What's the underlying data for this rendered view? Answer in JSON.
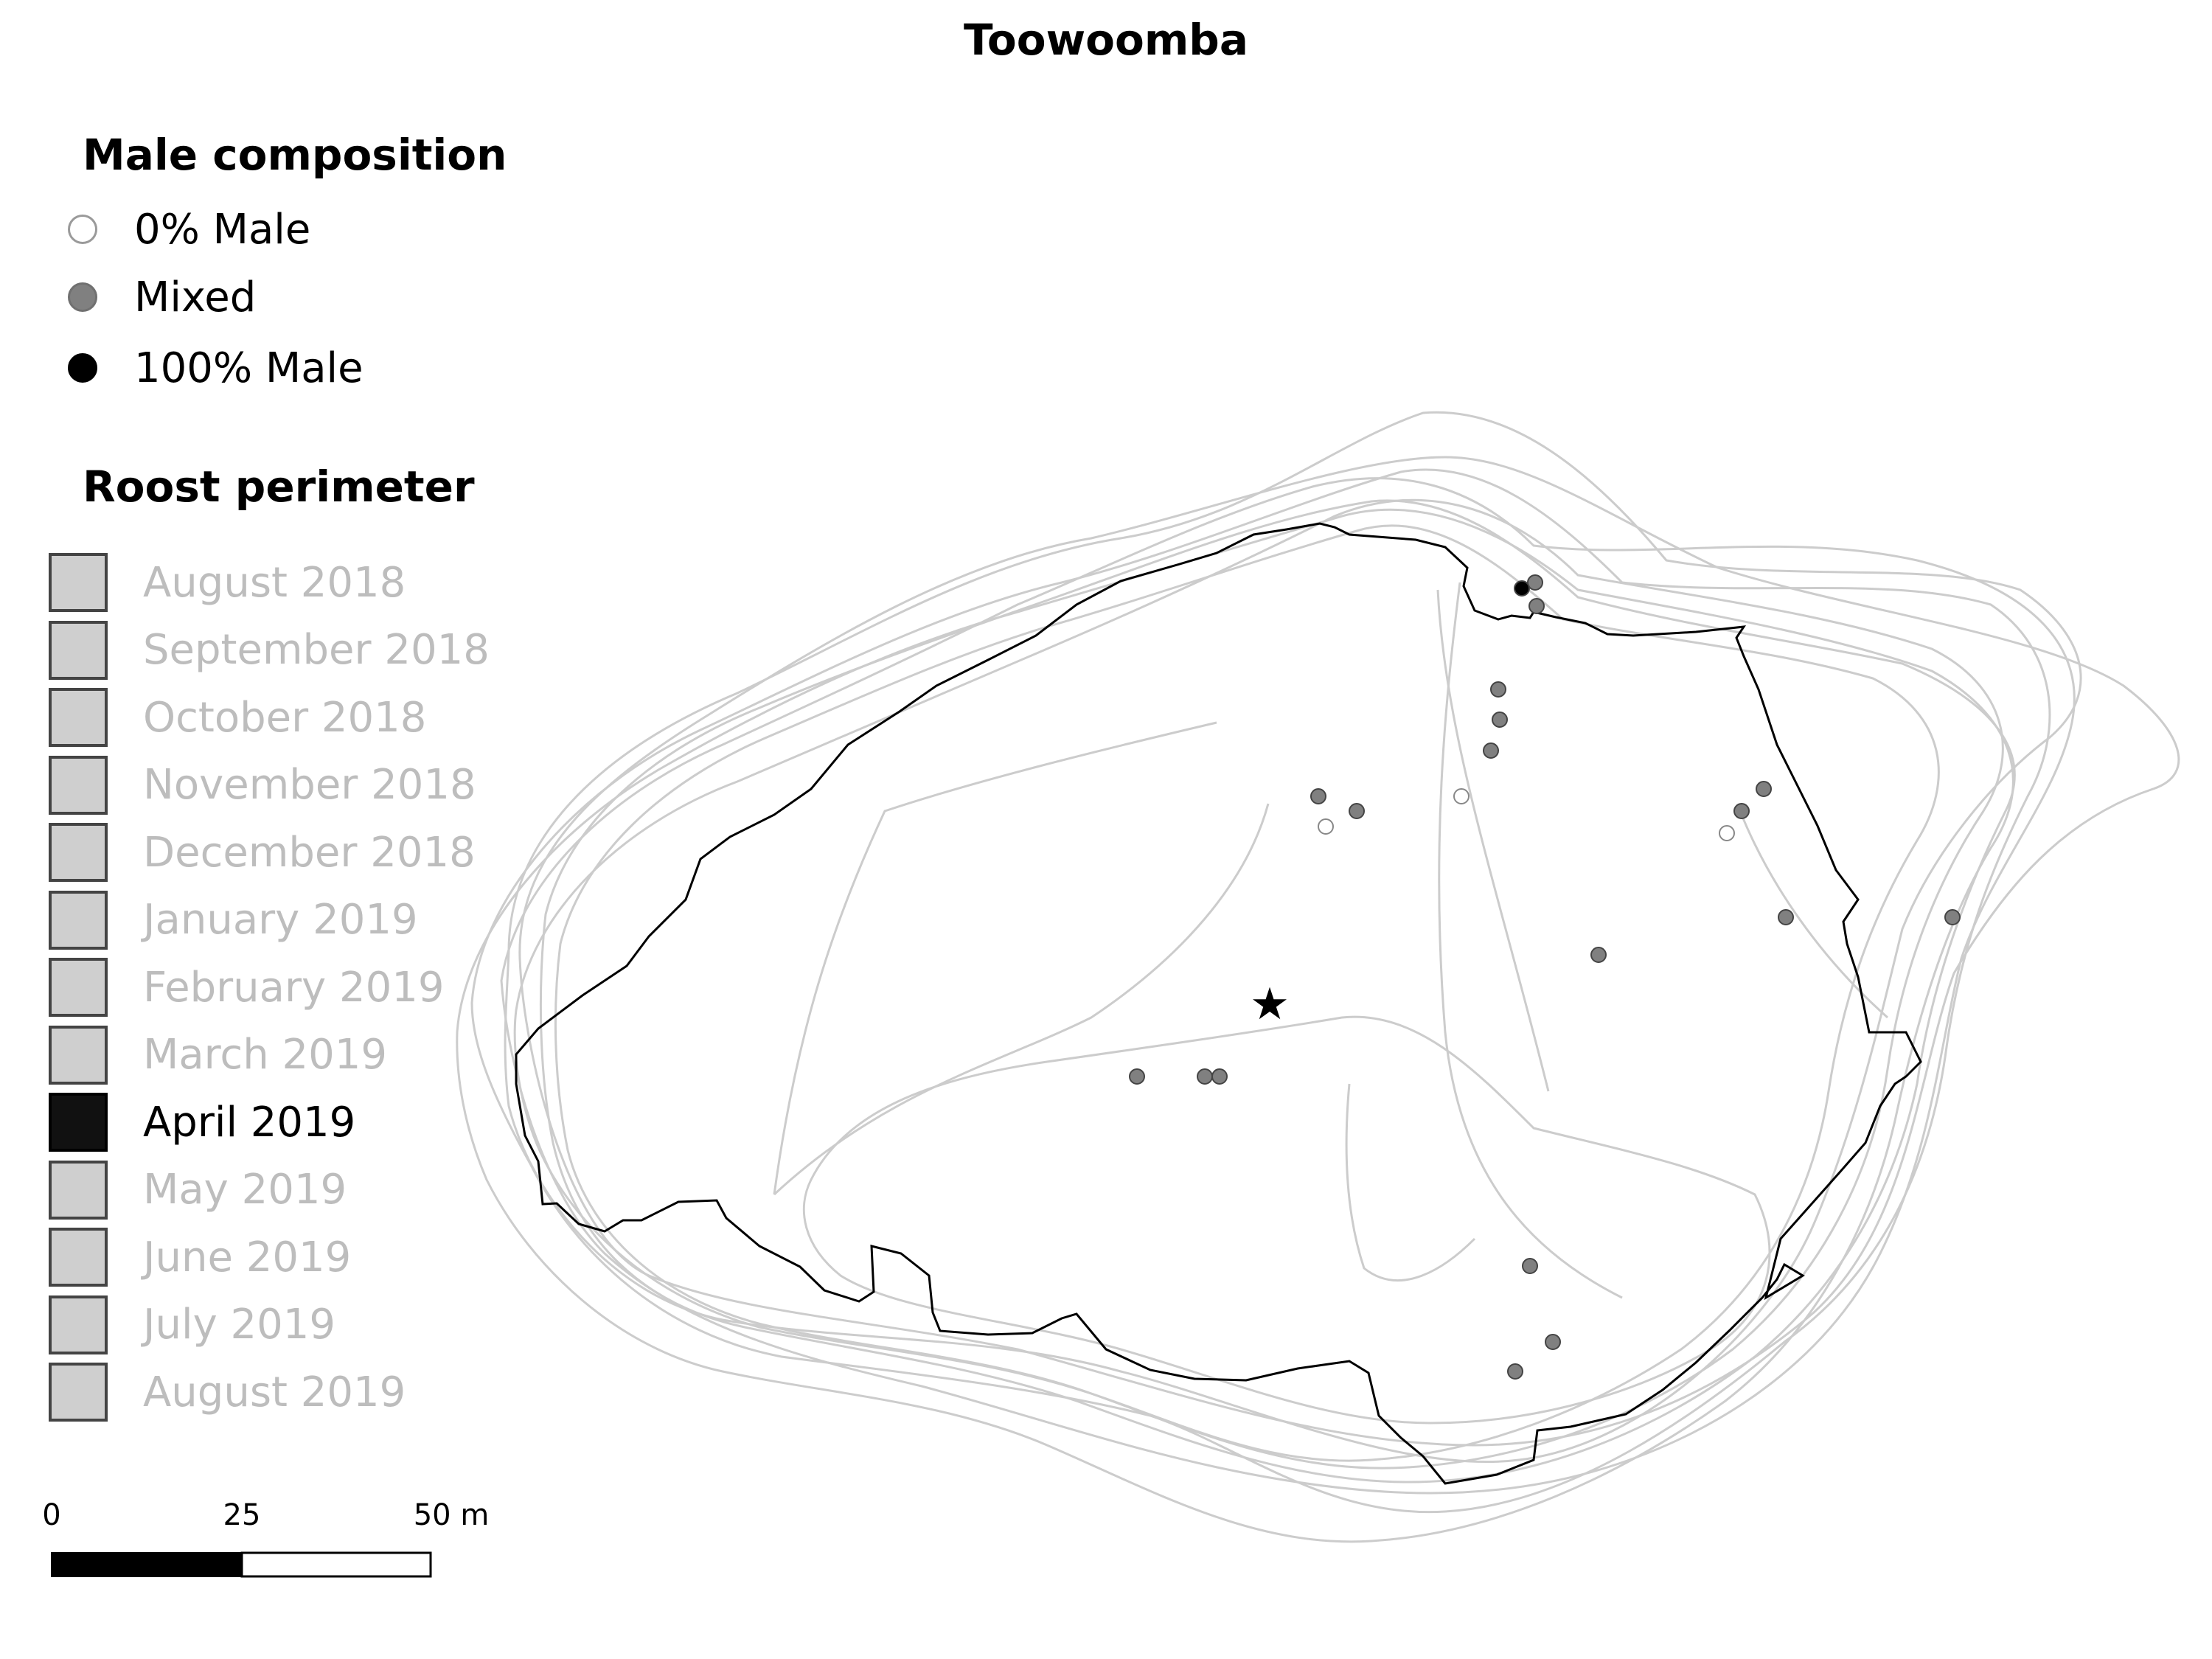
{
  "title": "Toowoomba",
  "legend": {
    "male_heading": "Male composition",
    "male_items": [
      {
        "label": "0% Male",
        "fill": "#ffffff"
      },
      {
        "label": "Mixed",
        "fill": "#808080"
      },
      {
        "label": "100% Male",
        "fill": "#000000"
      }
    ],
    "perimeter_heading": "Roost perimeter",
    "months": [
      {
        "label": "August 2018",
        "active": false
      },
      {
        "label": "September 2018",
        "active": false
      },
      {
        "label": "October 2018",
        "active": false
      },
      {
        "label": "November 2018",
        "active": false
      },
      {
        "label": "December 2018",
        "active": false
      },
      {
        "label": "January 2019",
        "active": false
      },
      {
        "label": "February 2019",
        "active": false
      },
      {
        "label": "March 2019",
        "active": false
      },
      {
        "label": "April 2019",
        "active": true
      },
      {
        "label": "May 2019",
        "active": false
      },
      {
        "label": "June 2019",
        "active": false
      },
      {
        "label": "July 2019",
        "active": false
      },
      {
        "label": "August 2019",
        "active": false
      }
    ]
  },
  "scale_bar": {
    "labels": [
      "0",
      "25",
      "50 m"
    ]
  },
  "markers": {
    "centroid": "star-icon"
  },
  "colors": {
    "active_perimeter": "#000000",
    "other_perimeters": "#cccccc",
    "mixed": "#808080"
  }
}
